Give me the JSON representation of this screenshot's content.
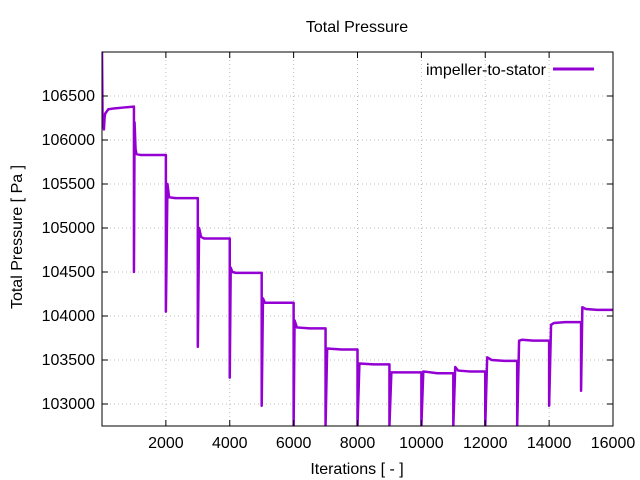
{
  "chart_data": {
    "type": "line",
    "title": "Total Pressure",
    "xlabel": "Iterations [ - ]",
    "ylabel": "Total Pressure [ Pa ]",
    "xlim": [
      0,
      16000
    ],
    "ylim": [
      102750,
      107000
    ],
    "grid": true,
    "legend_position": "top-right",
    "x_ticks": [
      2000,
      4000,
      6000,
      8000,
      10000,
      12000,
      14000,
      16000
    ],
    "x_tick_labels": [
      "2000",
      "4000",
      "6000",
      "8000",
      "10000",
      "12000",
      "14000",
      "16000"
    ],
    "y_ticks": [
      103000,
      103500,
      104000,
      104500,
      105000,
      105500,
      106000,
      106500
    ],
    "y_tick_labels": [
      "103000",
      "103500",
      "104000",
      "104500",
      "105000",
      "105500",
      "106000",
      "106500"
    ],
    "series": [
      {
        "name": "impeller-to-stator",
        "color": "#9400d3",
        "x": [
          0,
          20,
          40,
          60,
          80,
          100,
          200,
          400,
          700,
          1000,
          1000,
          1020,
          1050,
          1080,
          1200,
          1500,
          2000,
          2000,
          2050,
          2100,
          2300,
          3000,
          3000,
          3040,
          3100,
          3200,
          3500,
          4000,
          4000,
          4030,
          4080,
          4200,
          4600,
          5000,
          5000,
          5040,
          5100,
          5500,
          6000,
          6000,
          6030,
          6100,
          6500,
          7000,
          7000,
          7050,
          7500,
          8000,
          8000,
          8060,
          8500,
          9000,
          9000,
          9060,
          9500,
          10000,
          10000,
          10060,
          10500,
          11000,
          11000,
          11060,
          11150,
          11500,
          12000,
          12000,
          12060,
          12200,
          12600,
          13000,
          13000,
          13060,
          13150,
          13500,
          14000,
          14000,
          14060,
          14150,
          14500,
          15000,
          15000,
          15040,
          15150,
          15500,
          16000
        ],
        "values": [
          107000,
          106150,
          106200,
          106120,
          106250,
          106300,
          106350,
          106360,
          106370,
          106380,
          104500,
          106200,
          105900,
          105840,
          105830,
          105830,
          105830,
          104050,
          105500,
          105350,
          105340,
          105340,
          103650,
          105000,
          104900,
          104880,
          104880,
          104880,
          103300,
          104550,
          104500,
          104490,
          104490,
          104490,
          102980,
          104200,
          104150,
          104150,
          104150,
          102750,
          103950,
          103870,
          103860,
          103860,
          102750,
          103630,
          103620,
          103620,
          102750,
          103460,
          103450,
          103450,
          102750,
          103360,
          103360,
          103360,
          102750,
          103370,
          103350,
          103350,
          102750,
          103420,
          103380,
          103370,
          103370,
          102750,
          103530,
          103500,
          103490,
          103490,
          102750,
          103720,
          103730,
          103720,
          103720,
          102980,
          103900,
          103920,
          103930,
          103930,
          103150,
          104100,
          104080,
          104070,
          104070
        ]
      }
    ]
  }
}
